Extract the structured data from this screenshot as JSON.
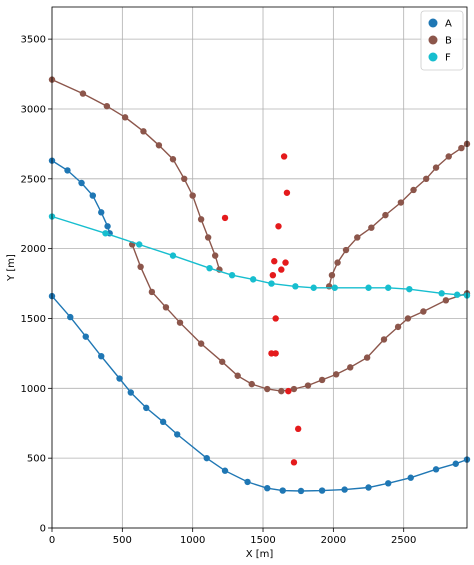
{
  "chart_data": {
    "type": "scatter",
    "xlabel": "X [m]",
    "ylabel": "Y [m]",
    "xlim": [
      0,
      2950
    ],
    "ylim": [
      0,
      3730
    ],
    "xticks": [
      0,
      500,
      1000,
      1500,
      2000,
      2500
    ],
    "yticks": [
      0,
      500,
      1000,
      1500,
      2000,
      2500,
      3000,
      3500
    ],
    "grid": true,
    "legend_position": "top-right",
    "series": [
      {
        "name": "A",
        "color": "#1f77b4",
        "segments": [
          [
            [
              0,
              2630
            ],
            [
              110,
              2560
            ],
            [
              210,
              2470
            ],
            [
              290,
              2380
            ],
            [
              350,
              2260
            ],
            [
              395,
              2160
            ],
            [
              410,
              2110
            ]
          ],
          [
            [
              0,
              1660
            ],
            [
              130,
              1510
            ],
            [
              240,
              1370
            ],
            [
              350,
              1230
            ],
            [
              480,
              1070
            ],
            [
              560,
              970
            ],
            [
              670,
              860
            ],
            [
              790,
              760
            ],
            [
              890,
              670
            ],
            [
              1100,
              500
            ],
            [
              1230,
              410
            ],
            [
              1390,
              330
            ],
            [
              1530,
              285
            ],
            [
              1640,
              268
            ],
            [
              1770,
              265
            ],
            [
              1920,
              268
            ],
            [
              2080,
              275
            ],
            [
              2250,
              290
            ],
            [
              2390,
              320
            ],
            [
              2550,
              360
            ],
            [
              2730,
              420
            ],
            [
              2870,
              460
            ],
            [
              2950,
              490
            ]
          ]
        ]
      },
      {
        "name": "B",
        "color": "#8c564b",
        "segments": [
          [
            [
              0,
              3210
            ],
            [
              220,
              3110
            ],
            [
              390,
              3020
            ],
            [
              520,
              2940
            ],
            [
              650,
              2840
            ],
            [
              760,
              2740
            ],
            [
              860,
              2640
            ],
            [
              940,
              2500
            ],
            [
              1000,
              2380
            ],
            [
              1060,
              2210
            ],
            [
              1110,
              2080
            ],
            [
              1160,
              1950
            ],
            [
              1190,
              1850
            ]
          ],
          [
            [
              570,
              2030
            ],
            [
              630,
              1870
            ],
            [
              710,
              1690
            ],
            [
              810,
              1580
            ],
            [
              910,
              1470
            ],
            [
              1060,
              1320
            ],
            [
              1210,
              1190
            ],
            [
              1320,
              1090
            ],
            [
              1420,
              1030
            ],
            [
              1530,
              995
            ],
            [
              1630,
              980
            ],
            [
              1720,
              995
            ],
            [
              1820,
              1020
            ],
            [
              1920,
              1060
            ],
            [
              2020,
              1100
            ],
            [
              2120,
              1150
            ],
            [
              2240,
              1220
            ],
            [
              2360,
              1350
            ],
            [
              2460,
              1440
            ],
            [
              2530,
              1500
            ],
            [
              2640,
              1550
            ],
            [
              2800,
              1630
            ],
            [
              2950,
              1680
            ]
          ],
          [
            [
              1970,
              1730
            ],
            [
              1990,
              1810
            ],
            [
              2030,
              1900
            ],
            [
              2090,
              1990
            ],
            [
              2170,
              2080
            ],
            [
              2270,
              2150
            ],
            [
              2370,
              2240
            ],
            [
              2480,
              2330
            ],
            [
              2570,
              2420
            ],
            [
              2660,
              2500
            ],
            [
              2730,
              2580
            ],
            [
              2820,
              2660
            ],
            [
              2910,
              2720
            ],
            [
              2950,
              2750
            ]
          ]
        ]
      },
      {
        "name": "F",
        "color": "#17becf",
        "segments": [
          [
            [
              0,
              2230
            ],
            [
              380,
              2110
            ],
            [
              620,
              2030
            ],
            [
              860,
              1950
            ],
            [
              1120,
              1860
            ],
            [
              1280,
              1810
            ],
            [
              1430,
              1780
            ],
            [
              1560,
              1750
            ],
            [
              1730,
              1730
            ],
            [
              1860,
              1720
            ],
            [
              2010,
              1720
            ],
            [
              2250,
              1720
            ],
            [
              2390,
              1720
            ],
            [
              2540,
              1710
            ],
            [
              2770,
              1680
            ],
            [
              2880,
              1670
            ],
            [
              2950,
              1665
            ]
          ]
        ]
      },
      {
        "color": "#e41a1c",
        "segments": [],
        "points": [
          [
            1650,
            2660
          ],
          [
            1670,
            2400
          ],
          [
            1230,
            2220
          ],
          [
            1610,
            2160
          ],
          [
            1580,
            1910
          ],
          [
            1660,
            1900
          ],
          [
            1630,
            1850
          ],
          [
            1570,
            1810
          ],
          [
            1590,
            1500
          ],
          [
            1560,
            1250
          ],
          [
            1590,
            1250
          ],
          [
            1680,
            980
          ],
          [
            1750,
            710
          ],
          [
            1720,
            470
          ]
        ]
      }
    ]
  }
}
